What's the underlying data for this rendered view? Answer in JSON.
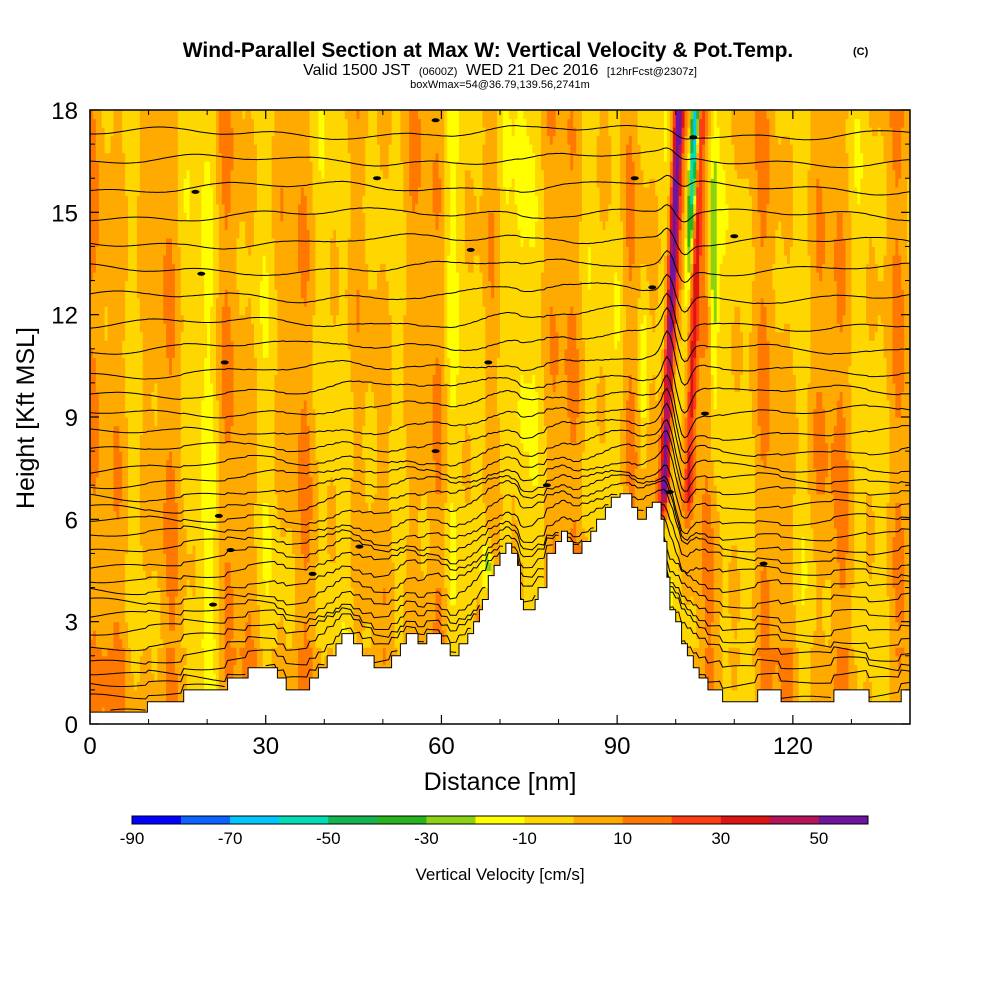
{
  "title": "Wind-Parallel Section at Max W: Vertical Velocity & Pot.Temp.",
  "copyright": "(C)",
  "subtitle_valid": "Valid 1500 JST",
  "subtitle_z": "(0600Z)",
  "subtitle_date": "WED 21 Dec 2016",
  "subtitle_fcst": "[12hrFcst@2307z]",
  "subtitle_box": "boxWmax=54@36.79,139.56,2741m",
  "colorbar": {
    "title": "Vertical Velocity [cm/s]",
    "levels": [
      -90,
      -80,
      -70,
      -60,
      -50,
      -40,
      -30,
      -20,
      -10,
      0,
      10,
      20,
      30,
      40,
      50,
      60
    ],
    "tick_labels": [
      "-90",
      "-70",
      "-50",
      "-30",
      "-10",
      "10",
      "30",
      "50"
    ],
    "colors": [
      "#0000ff",
      "#0a64ff",
      "#00c8ff",
      "#00dcb4",
      "#14b450",
      "#28b41e",
      "#8cd214",
      "#ffff00",
      "#ffd700",
      "#ffaa00",
      "#ff7800",
      "#ff3c14",
      "#dc1414",
      "#b4145a",
      "#6e14a0"
    ]
  },
  "chart_data": {
    "type": "heatmap",
    "description_fields": "cross-section of vertical velocity (filled) with potential temperature contours over terrain",
    "xlabel": "Distance [nm]",
    "ylabel": "Height [Kft MSL]",
    "xlim": [
      0,
      140
    ],
    "ylim": [
      0,
      18
    ],
    "xticks": [
      "0",
      "30",
      "60",
      "90",
      "120"
    ],
    "yticks": [
      "0",
      "3",
      "6",
      "9",
      "12",
      "15",
      "18"
    ],
    "background_velocity_range": [
      -10,
      10
    ],
    "updraft_max": 54,
    "updraft_location_nm": 98.5,
    "downdraft_min": -80,
    "downdraft_location_nm": 100.5,
    "terrain_kft": [
      [
        0,
        0.35
      ],
      [
        9.8,
        0.35
      ],
      [
        9.8,
        0.65
      ],
      [
        16,
        0.65
      ],
      [
        16,
        1.0
      ],
      [
        23.5,
        1.0
      ],
      [
        23.5,
        1.35
      ],
      [
        27,
        1.35
      ],
      [
        27,
        1.65
      ],
      [
        32,
        1.65
      ],
      [
        32,
        1.35
      ],
      [
        33.5,
        1.35
      ],
      [
        33.5,
        1.0
      ],
      [
        37.5,
        1.0
      ],
      [
        37.5,
        1.35
      ],
      [
        39,
        1.35
      ],
      [
        39,
        1.65
      ],
      [
        40.5,
        1.65
      ],
      [
        40.5,
        2.0
      ],
      [
        42,
        2.0
      ],
      [
        42,
        2.35
      ],
      [
        43,
        2.35
      ],
      [
        43,
        2.65
      ],
      [
        45,
        2.65
      ],
      [
        45,
        2.35
      ],
      [
        46.5,
        2.35
      ],
      [
        46.5,
        2.0
      ],
      [
        48.5,
        2.0
      ],
      [
        48.5,
        1.65
      ],
      [
        51.5,
        1.65
      ],
      [
        51.5,
        2.0
      ],
      [
        53,
        2.0
      ],
      [
        53,
        2.35
      ],
      [
        54,
        2.35
      ],
      [
        54,
        2.65
      ],
      [
        56,
        2.65
      ],
      [
        56,
        2.35
      ],
      [
        57.5,
        2.35
      ],
      [
        57.5,
        2.65
      ],
      [
        60,
        2.65
      ],
      [
        60,
        2.35
      ],
      [
        61.5,
        2.35
      ],
      [
        61.5,
        2.0
      ],
      [
        63,
        2.0
      ],
      [
        63,
        2.35
      ],
      [
        64.5,
        2.35
      ],
      [
        64.5,
        2.65
      ],
      [
        65.5,
        2.65
      ],
      [
        65.5,
        3.0
      ],
      [
        66.5,
        3.0
      ],
      [
        66.5,
        3.35
      ],
      [
        67,
        3.35
      ],
      [
        67,
        3.65
      ],
      [
        68,
        3.65
      ],
      [
        68,
        4.35
      ],
      [
        69,
        4.35
      ],
      [
        69,
        4.65
      ],
      [
        70,
        4.65
      ],
      [
        70,
        5.0
      ],
      [
        71,
        5.0
      ],
      [
        71,
        5.3
      ],
      [
        72,
        5.3
      ],
      [
        72,
        5.0
      ],
      [
        73,
        5.0
      ],
      [
        73,
        4.65
      ],
      [
        73.5,
        4.65
      ],
      [
        73.5,
        3.65
      ],
      [
        74,
        3.65
      ],
      [
        74,
        3.35
      ],
      [
        76,
        3.35
      ],
      [
        76,
        3.65
      ],
      [
        76.5,
        3.65
      ],
      [
        76.5,
        4.0
      ],
      [
        78,
        4.0
      ],
      [
        78,
        5.0
      ],
      [
        79.5,
        5.0
      ],
      [
        79.5,
        5.35
      ],
      [
        80.5,
        5.35
      ],
      [
        80.5,
        5.65
      ],
      [
        81.5,
        5.65
      ],
      [
        81.5,
        5.35
      ],
      [
        82.5,
        5.35
      ],
      [
        82.5,
        5.0
      ],
      [
        84,
        5.0
      ],
      [
        84,
        5.35
      ],
      [
        85.5,
        5.35
      ],
      [
        85.5,
        5.65
      ],
      [
        86.5,
        5.65
      ],
      [
        86.5,
        6.0
      ],
      [
        88,
        6.0
      ],
      [
        88,
        6.35
      ],
      [
        89,
        6.35
      ],
      [
        89,
        6.65
      ],
      [
        90.5,
        6.65
      ],
      [
        90.5,
        6.75
      ],
      [
        92.5,
        6.75
      ],
      [
        92.5,
        6.35
      ],
      [
        93.5,
        6.35
      ],
      [
        93.5,
        6.0
      ],
      [
        95,
        6.0
      ],
      [
        95,
        6.35
      ],
      [
        96,
        6.35
      ],
      [
        96,
        6.5
      ],
      [
        97.5,
        6.5
      ],
      [
        97.5,
        6.0
      ],
      [
        98,
        6.0
      ],
      [
        98,
        5.35
      ],
      [
        98.5,
        5.35
      ],
      [
        98.5,
        4.3
      ],
      [
        99,
        4.3
      ],
      [
        99,
        3.35
      ],
      [
        100,
        3.35
      ],
      [
        100,
        3.0
      ],
      [
        101,
        3.0
      ],
      [
        101,
        2.35
      ],
      [
        102,
        2.35
      ],
      [
        102,
        2.0
      ],
      [
        103,
        2.0
      ],
      [
        103,
        1.65
      ],
      [
        104,
        1.65
      ],
      [
        104,
        1.35
      ],
      [
        105.5,
        1.35
      ],
      [
        105.5,
        1.0
      ],
      [
        108,
        1.0
      ],
      [
        108,
        0.65
      ],
      [
        114,
        0.65
      ],
      [
        114,
        1.0
      ],
      [
        118,
        1.0
      ],
      [
        118,
        0.65
      ],
      [
        127,
        0.65
      ],
      [
        127,
        1.0
      ],
      [
        133,
        1.0
      ],
      [
        133,
        0.65
      ],
      [
        138.5,
        0.65
      ],
      [
        138.5,
        1.0
      ],
      [
        140,
        1.0
      ]
    ],
    "theta_contour_base_kft": [
      0.3,
      0.7,
      1.1,
      1.5,
      1.9,
      2.3,
      2.7,
      3.1,
      3.5,
      3.9,
      4.3,
      4.7,
      5.1,
      5.5,
      5.9,
      6.3,
      6.7,
      7.1,
      7.5,
      8.0,
      8.5,
      9.1,
      9.7,
      10.3,
      11.0,
      11.7,
      12.5,
      13.3,
      14.1,
      14.9,
      15.7,
      16.5,
      17.3
    ]
  }
}
